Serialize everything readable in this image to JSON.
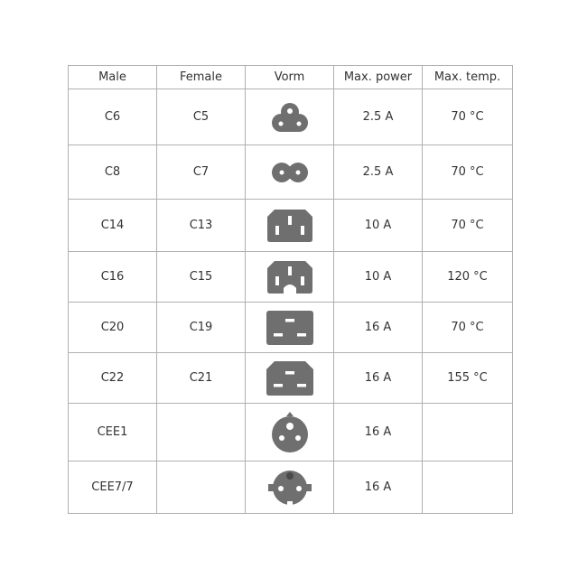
{
  "headers": [
    "Male",
    "Female",
    "Vorm",
    "Max. power",
    "Max. temp."
  ],
  "rows": [
    {
      "male": "C6",
      "female": "C5",
      "icon": "c5-cloverleaf-icon",
      "power": "2.5 A",
      "temp": "70 °C"
    },
    {
      "male": "C8",
      "female": "C7",
      "icon": "c7-figure-eight-icon",
      "power": "2.5 A",
      "temp": "70 °C"
    },
    {
      "male": "C14",
      "female": "C13",
      "icon": "c13-icon",
      "power": "10 A",
      "temp": "70 °C"
    },
    {
      "male": "C16",
      "female": "C15",
      "icon": "c15-icon",
      "power": "10 A",
      "temp": "120 °C"
    },
    {
      "male": "C20",
      "female": "C19",
      "icon": "c19-icon",
      "power": "16 A",
      "temp": "70 °C"
    },
    {
      "male": "C22",
      "female": "C21",
      "icon": "c21-icon",
      "power": "16 A",
      "temp": "155 °C"
    },
    {
      "male": "CEE1",
      "female": "",
      "icon": "cee1-round-icon",
      "power": "16 A",
      "temp": ""
    },
    {
      "male": "CEE7/7",
      "female": "",
      "icon": "cee7-schuko-icon",
      "power": "16 A",
      "temp": ""
    }
  ],
  "icon_color": "#6f6f6f"
}
